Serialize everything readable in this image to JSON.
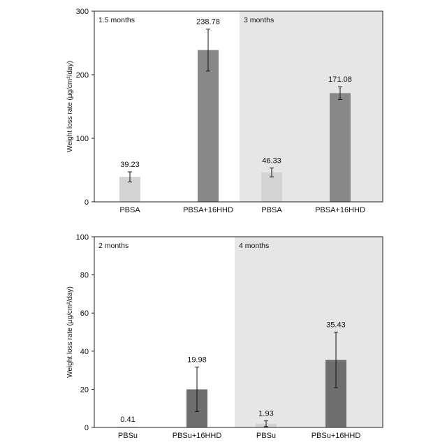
{
  "chart_data": [
    {
      "type": "bar",
      "categories": [
        "PBSA",
        "PBSA+16HHD",
        "PBSA",
        "PBSA+16HHD"
      ],
      "values": [
        39.23,
        238.78,
        46.33,
        171.08
      ],
      "value_labels": [
        "39.23",
        "238.78",
        "46.33",
        "171.08"
      ],
      "error": [
        8,
        33,
        7,
        10
      ],
      "bar_colors": [
        "#d3d3d3",
        "#888888",
        "#d3d3d3",
        "#888888"
      ],
      "ylabel": "Weight loss rate (μg/cm²/day)",
      "ylim": [
        0,
        300
      ],
      "yticks": [
        0,
        100,
        200,
        300
      ],
      "periods": [
        {
          "label": "1.5 months",
          "shaded": false
        },
        {
          "label": "3 months",
          "shaded": true
        }
      ],
      "shade_color": "#e6e6e6"
    },
    {
      "type": "bar",
      "categories": [
        "PBSu",
        "PBSu+16HHD",
        "PBSu",
        "PBSu+16HHD"
      ],
      "values": [
        0.41,
        19.98,
        1.93,
        35.43
      ],
      "value_labels": [
        "0.41",
        "19.98",
        "1.93",
        "35.43"
      ],
      "error": [
        0,
        11.7,
        1.5,
        14.6
      ],
      "bar_colors": [
        "#d3d3d3",
        "#6e6e6e",
        "#d3d3d3",
        "#6e6e6e"
      ],
      "ylabel": "Weight loss rate (μg/cm²/day)",
      "ylim": [
        0,
        100
      ],
      "yticks": [
        0,
        20,
        40,
        60,
        80,
        100
      ],
      "periods": [
        {
          "label": "2 months",
          "shaded": false
        },
        {
          "label": "4 months",
          "shaded": true
        }
      ],
      "shade_color": "#e6e6e6"
    }
  ]
}
